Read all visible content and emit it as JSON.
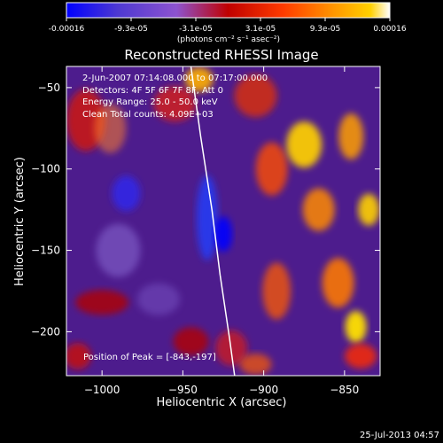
{
  "colorbar": {
    "ticks": [
      "-0.00016",
      "-9.3e-05",
      "-3.1e-05",
      "3.1e-05",
      "9.3e-05",
      "0.00016"
    ],
    "unit_text": "(photons cm⁻² s⁻¹ asec⁻²)"
  },
  "chart_data": {
    "type": "heatmap",
    "title": "Reconstructed RHESSI Image",
    "xlabel": "Heliocentric X (arcsec)",
    "ylabel": "Heliocentric Y (arcsec)",
    "xlim": [
      -1022,
      -828
    ],
    "ylim": [
      -227,
      -37
    ],
    "xticks": [
      -1000,
      -950,
      -900,
      -850
    ],
    "yticks": [
      -50,
      -100,
      -150,
      -200
    ],
    "xtick_labels": [
      "−1000",
      "−950",
      "−900",
      "−850"
    ],
    "ytick_labels": [
      "−50",
      "−100",
      "−150",
      "−200"
    ],
    "colorbar_range": [
      -0.00016,
      0.00016
    ],
    "colormap": [
      "#0000ff",
      "#5f2db0",
      "#a06ccf",
      "#ff0000",
      "#ff7f00",
      "#ffff00",
      "#ffffff"
    ],
    "annotations": [
      "2-Jun-2007 07:14:08.000 to 07:17:00.000",
      "Detectors: 4F 5F 6F 7F 8F, Att 0",
      "Energy Range: 25.0 - 50.0 keV",
      "Clean     Total counts: 4.09E+03",
      "Position of Peak = [-843,-197]"
    ],
    "peak_position": [
      -843,
      -197
    ],
    "limb_curve": [
      [
        -945,
        -37
      ],
      [
        -939,
        -80
      ],
      [
        -932,
        -125
      ],
      [
        -927,
        -165
      ],
      [
        -921,
        -205
      ],
      [
        -918,
        -227
      ]
    ]
  },
  "footer": {
    "timestamp": "25-Jul-2013 04:57"
  }
}
